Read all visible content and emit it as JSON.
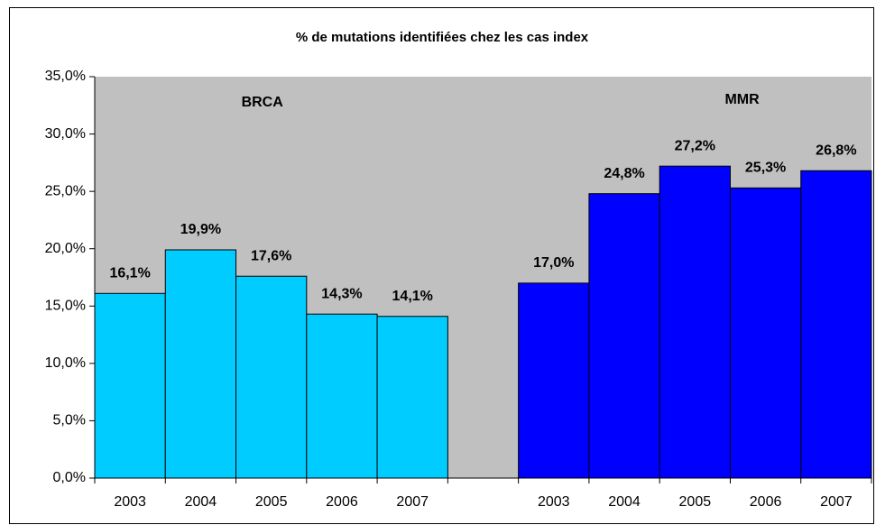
{
  "chart_data": {
    "type": "bar",
    "title": "% de mutations identifiées chez les cas index",
    "categories": [
      "2003",
      "2004",
      "2005",
      "2006",
      "2007",
      null,
      "2003",
      "2004",
      "2005",
      "2006",
      "2007"
    ],
    "series": [
      {
        "name": "BRCA",
        "color": "#00ccff",
        "values": [
          16.1,
          19.9,
          17.6,
          14.3,
          14.1,
          null,
          null,
          null,
          null,
          null,
          null
        ],
        "value_labels": [
          "16,1%",
          "19,9%",
          "17,6%",
          "14,3%",
          "14,1%",
          null,
          null,
          null,
          null,
          null,
          null
        ]
      },
      {
        "name": "MMR",
        "color": "#0000ff",
        "values": [
          null,
          null,
          null,
          null,
          null,
          null,
          17.0,
          24.8,
          27.2,
          25.3,
          26.8
        ],
        "value_labels": [
          null,
          null,
          null,
          null,
          null,
          null,
          "17,0%",
          "24,8%",
          "27,2%",
          "25,3%",
          "26,8%"
        ]
      }
    ],
    "ylim": [
      0,
      35
    ],
    "yticks": [
      {
        "value": 0,
        "label": "0,0%"
      },
      {
        "value": 5,
        "label": "5,0%"
      },
      {
        "value": 10,
        "label": "10,0%"
      },
      {
        "value": 15,
        "label": "15,0%"
      },
      {
        "value": 20,
        "label": "20,0%"
      },
      {
        "value": 25,
        "label": "25,0%"
      },
      {
        "value": 30,
        "label": "30,0%"
      },
      {
        "value": 35,
        "label": "35,0%"
      }
    ],
    "plot_background": "#c0c0c0"
  }
}
